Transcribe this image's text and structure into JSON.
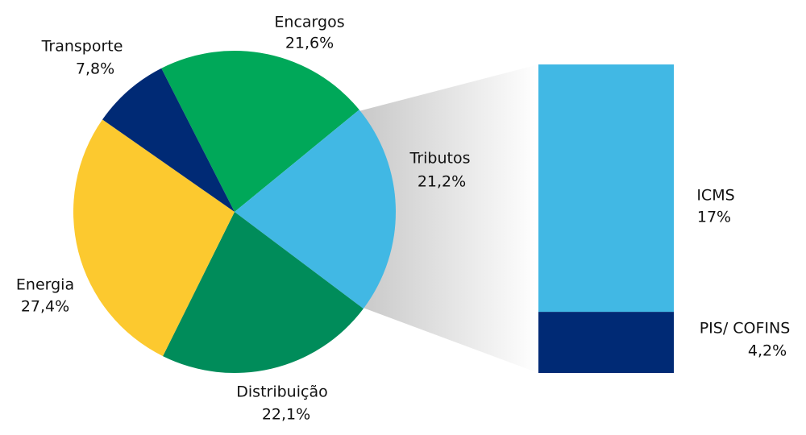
{
  "chart_data": [
    {
      "type": "pie",
      "categories": [
        "Encargos",
        "Tributos",
        "Distribuição",
        "Energia",
        "Transporte"
      ],
      "values": [
        21.6,
        21.2,
        22.1,
        27.4,
        7.8
      ],
      "value_labels": [
        "21,6%",
        "21,2%",
        "22,1%",
        "27,4%",
        "7,8%"
      ],
      "colors": [
        "#00a859",
        "#41b8e4",
        "#008c5a",
        "#fcc92f",
        "#002a75"
      ]
    },
    {
      "type": "bar",
      "series": [
        {
          "name": "ICMS",
          "color": "#41b8e4",
          "values": [
            17
          ],
          "value_labels": [
            "17%"
          ]
        },
        {
          "name": "PIS/ COFINS",
          "color": "#002a75",
          "values": [
            4.2
          ],
          "value_labels": [
            "4,2%"
          ]
        }
      ]
    }
  ]
}
